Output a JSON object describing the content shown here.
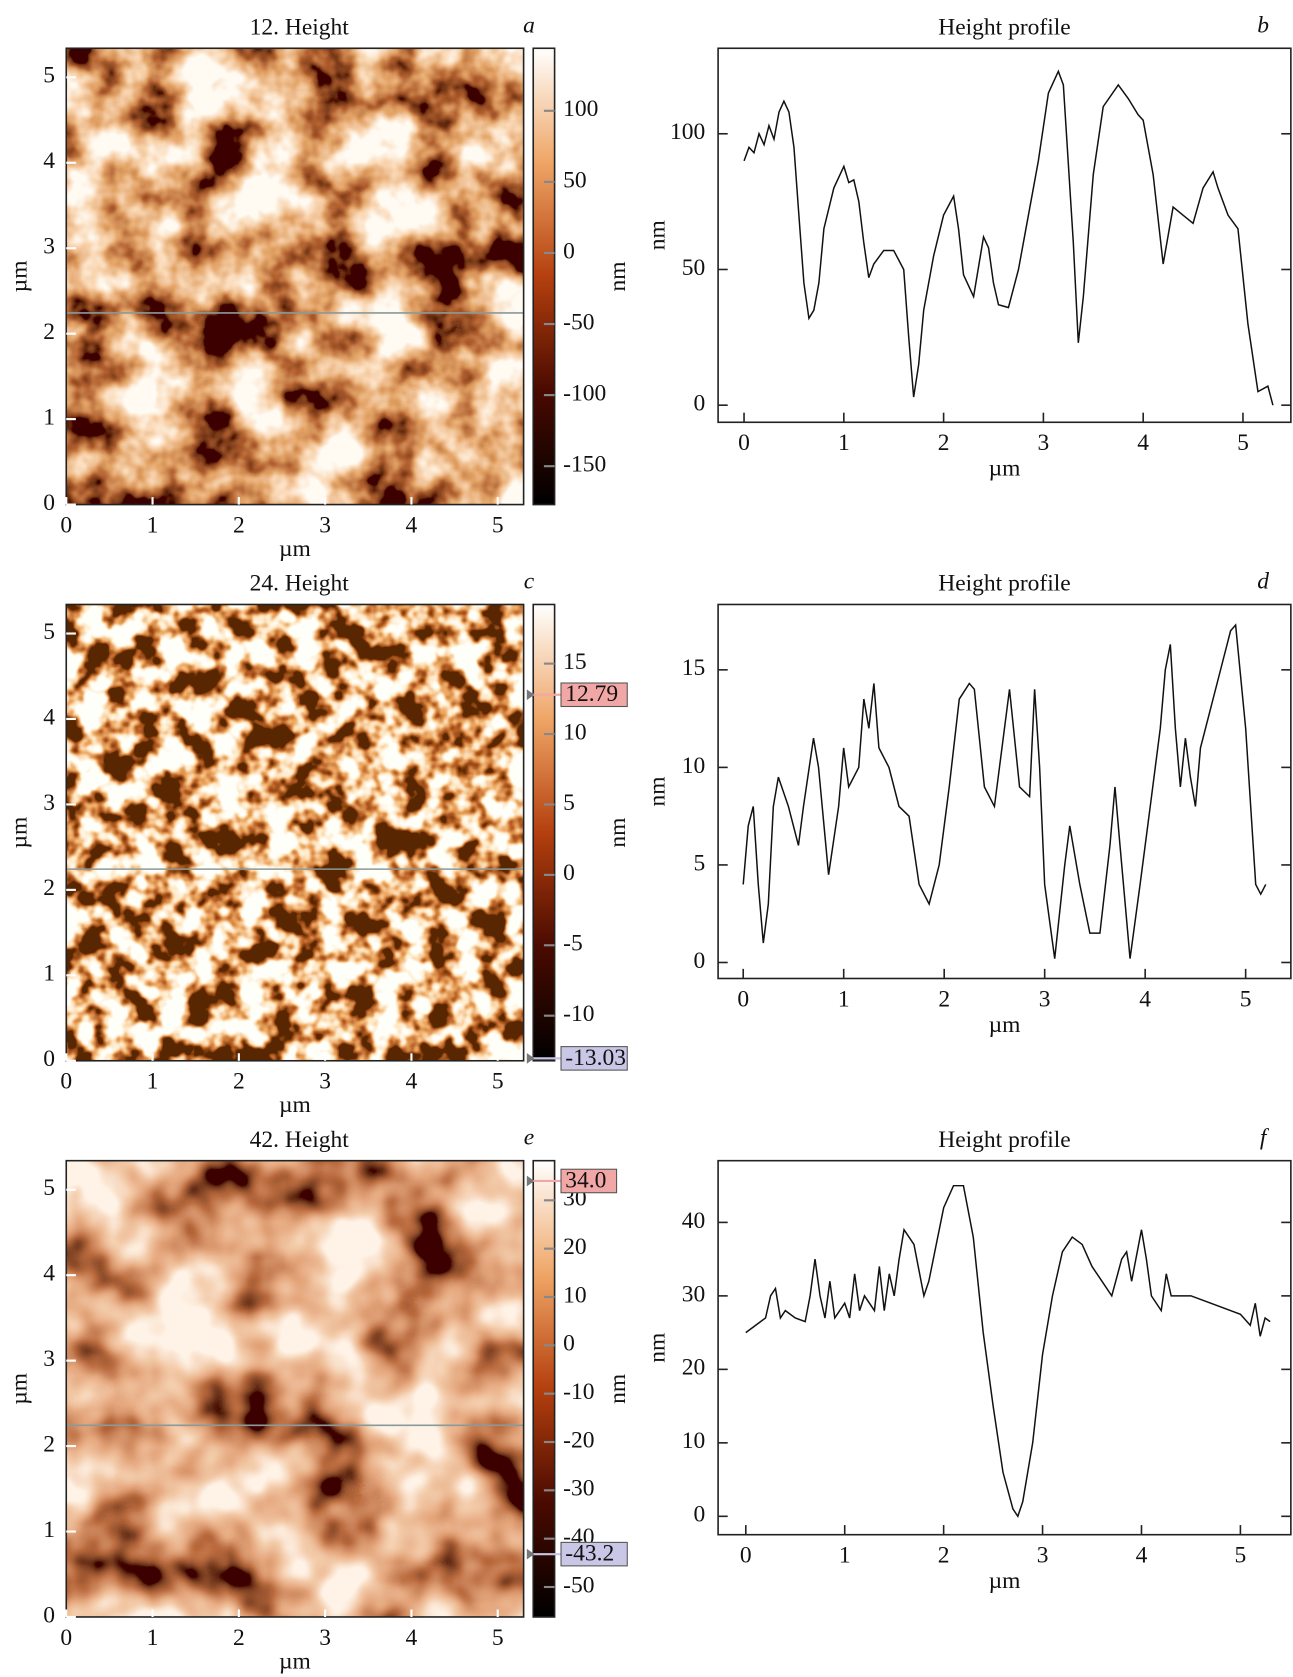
{
  "chart_data": [
    {
      "type": "afm-image",
      "title": "12. Height",
      "panel_label": "a",
      "x_label": "µm",
      "y_label": "µm",
      "colorbar_label": "nm",
      "xlim": [
        0,
        5.3
      ],
      "xticks": [
        0,
        1,
        2,
        3,
        4,
        5
      ],
      "ylim": [
        0,
        5.34
      ],
      "yticks": [
        0,
        1,
        2,
        3,
        4,
        5
      ],
      "clim": [
        -177,
        144
      ],
      "cticks": [
        100,
        50,
        0,
        -50,
        -100,
        -150
      ],
      "markers": []
    },
    {
      "type": "line",
      "title": "Height profile",
      "panel_label": "b",
      "x_label": "µm",
      "y_label": "nm",
      "color": "#111",
      "xlim": [
        -0.26,
        5.48
      ],
      "xticks": [
        0,
        1,
        2,
        3,
        4,
        5
      ],
      "ylim": [
        -6.3,
        131.5
      ],
      "yticks": [
        0,
        50,
        100
      ],
      "x": [
        0,
        0.05,
        0.1,
        0.15,
        0.2,
        0.25,
        0.3,
        0.35,
        0.4,
        0.45,
        0.5,
        0.55,
        0.6,
        0.65,
        0.7,
        0.75,
        0.8,
        0.9,
        1.0,
        1.05,
        1.1,
        1.15,
        1.2,
        1.25,
        1.3,
        1.4,
        1.5,
        1.6,
        1.65,
        1.7,
        1.75,
        1.8,
        1.9,
        2.0,
        2.1,
        2.15,
        2.2,
        2.3,
        2.4,
        2.45,
        2.5,
        2.55,
        2.65,
        2.75,
        2.85,
        2.95,
        3.05,
        3.15,
        3.2,
        3.3,
        3.35,
        3.4,
        3.5,
        3.6,
        3.75,
        3.85,
        3.95,
        4.0,
        4.1,
        4.2,
        4.3,
        4.4,
        4.5,
        4.6,
        4.7,
        4.75,
        4.85,
        4.95,
        5.05,
        5.15,
        5.25,
        5.3
      ],
      "values": [
        90,
        95,
        93,
        100,
        96,
        103,
        98,
        108,
        112,
        108,
        95,
        70,
        45,
        32,
        35,
        45,
        65,
        80,
        88,
        82,
        83,
        75,
        60,
        47,
        52,
        57,
        57,
        50,
        25,
        3,
        15,
        35,
        55,
        70,
        77,
        65,
        48,
        40,
        62,
        58,
        45,
        37,
        36,
        50,
        70,
        90,
        115,
        123,
        118,
        60,
        23,
        40,
        85,
        110,
        118,
        113,
        107,
        105,
        85,
        52,
        73,
        70,
        67,
        80,
        86,
        80,
        70,
        65,
        30,
        5,
        7,
        0
      ]
    },
    {
      "type": "afm-image",
      "title": "24. Height",
      "panel_label": "c",
      "x_label": "µm",
      "y_label": "µm",
      "colorbar_label": "nm",
      "xlim": [
        0,
        5.3
      ],
      "xticks": [
        0,
        1,
        2,
        3,
        4,
        5
      ],
      "ylim": [
        0,
        5.34
      ],
      "yticks": [
        0,
        1,
        2,
        3,
        4,
        5
      ],
      "clim": [
        -13.2,
        19.2
      ],
      "cticks": [
        15,
        10,
        5,
        0,
        -5,
        -10
      ],
      "markers": [
        {
          "value": 12.79,
          "color": "#f2a7a7"
        },
        {
          "value": -13.03,
          "color": "#c9c6e6"
        }
      ]
    },
    {
      "type": "line",
      "title": "Height profile",
      "panel_label": "d",
      "x_label": "µm",
      "y_label": "nm",
      "color": "#111",
      "xlim": [
        -0.25,
        5.45
      ],
      "xticks": [
        0,
        1,
        2,
        3,
        4,
        5
      ],
      "ylim": [
        -0.82,
        18.35
      ],
      "yticks": [
        0,
        5,
        10,
        15
      ],
      "x": [
        0,
        0.05,
        0.1,
        0.15,
        0.2,
        0.25,
        0.3,
        0.35,
        0.45,
        0.55,
        0.6,
        0.7,
        0.75,
        0.85,
        0.95,
        1.0,
        1.05,
        1.15,
        1.2,
        1.25,
        1.3,
        1.35,
        1.45,
        1.55,
        1.65,
        1.75,
        1.85,
        1.95,
        2.05,
        2.15,
        2.25,
        2.3,
        2.4,
        2.5,
        2.55,
        2.65,
        2.75,
        2.85,
        2.9,
        2.95,
        3.0,
        3.1,
        3.2,
        3.25,
        3.35,
        3.45,
        3.55,
        3.65,
        3.7,
        3.75,
        3.85,
        3.95,
        4.05,
        4.15,
        4.2,
        4.25,
        4.3,
        4.35,
        4.4,
        4.45,
        4.5,
        4.55,
        4.65,
        4.75,
        4.85,
        4.9,
        5.0,
        5.1,
        5.15,
        5.2
      ],
      "values": [
        4,
        7,
        8,
        4,
        1,
        3,
        8,
        9.5,
        8,
        6,
        8,
        11.5,
        10,
        4.5,
        8,
        11,
        9,
        10,
        13.5,
        12,
        14.3,
        11,
        10,
        8,
        7.5,
        4,
        3,
        5,
        9,
        13.5,
        14.3,
        14,
        9,
        8,
        10,
        14,
        9,
        8.5,
        14,
        10,
        4,
        0.2,
        5,
        7,
        4,
        1.5,
        1.5,
        6,
        9,
        6,
        0.2,
        4,
        8,
        12,
        15,
        16.3,
        12,
        9,
        11.5,
        9.5,
        8,
        11,
        13,
        15,
        17,
        17.3,
        12,
        4,
        3.5,
        4
      ]
    },
    {
      "type": "afm-image",
      "title": "42. Height",
      "panel_label": "e",
      "x_label": "µm",
      "y_label": "µm",
      "colorbar_label": "nm",
      "xlim": [
        0,
        5.3
      ],
      "xticks": [
        0,
        1,
        2,
        3,
        4,
        5
      ],
      "ylim": [
        0,
        5.34
      ],
      "yticks": [
        0,
        1,
        2,
        3,
        4,
        5
      ],
      "clim": [
        -56.2,
        38.2
      ],
      "cticks": [
        30,
        20,
        10,
        0,
        -10,
        -20,
        -30,
        -40,
        -50
      ],
      "markers": [
        {
          "value": 34,
          "label": "34.0",
          "color": "#f2a7a7"
        },
        {
          "value": -43.2,
          "color": "#c9c6e6"
        }
      ]
    },
    {
      "type": "line",
      "title": "Height profile",
      "panel_label": "f",
      "x_label": "µm",
      "y_label": "nm",
      "color": "#111",
      "xlim": [
        -0.28,
        5.51
      ],
      "xticks": [
        0,
        1,
        2,
        3,
        4,
        5
      ],
      "ylim": [
        -2.5,
        48.4
      ],
      "yticks": [
        0,
        10,
        20,
        30,
        40
      ],
      "x": [
        0,
        0.1,
        0.2,
        0.25,
        0.3,
        0.35,
        0.4,
        0.5,
        0.6,
        0.65,
        0.7,
        0.75,
        0.8,
        0.85,
        0.9,
        1.0,
        1.05,
        1.1,
        1.15,
        1.2,
        1.3,
        1.35,
        1.4,
        1.45,
        1.5,
        1.55,
        1.6,
        1.7,
        1.8,
        1.85,
        2.0,
        2.1,
        2.2,
        2.3,
        2.4,
        2.5,
        2.6,
        2.7,
        2.75,
        2.8,
        2.9,
        3.0,
        3.1,
        3.2,
        3.3,
        3.4,
        3.5,
        3.6,
        3.7,
        3.8,
        3.85,
        3.9,
        4.0,
        4.05,
        4.1,
        4.2,
        4.25,
        4.3,
        4.5,
        4.7,
        4.9,
        5.0,
        5.1,
        5.15,
        5.2,
        5.25,
        5.3
      ],
      "values": [
        25,
        26,
        27,
        30,
        31,
        27,
        28,
        27,
        26.5,
        30,
        35,
        30,
        27,
        32,
        27,
        29,
        27,
        33,
        28,
        30,
        28,
        34,
        28,
        33,
        30,
        35,
        39,
        37,
        30,
        32,
        42,
        45,
        45,
        38,
        25,
        15,
        6,
        1,
        0,
        2,
        10,
        22,
        30,
        36,
        38,
        37,
        34,
        32,
        30,
        35,
        36,
        32,
        39,
        35,
        30,
        28,
        33,
        30,
        30,
        29,
        28,
        27.5,
        26,
        29,
        24.5,
        27,
        26.5
      ]
    }
  ]
}
